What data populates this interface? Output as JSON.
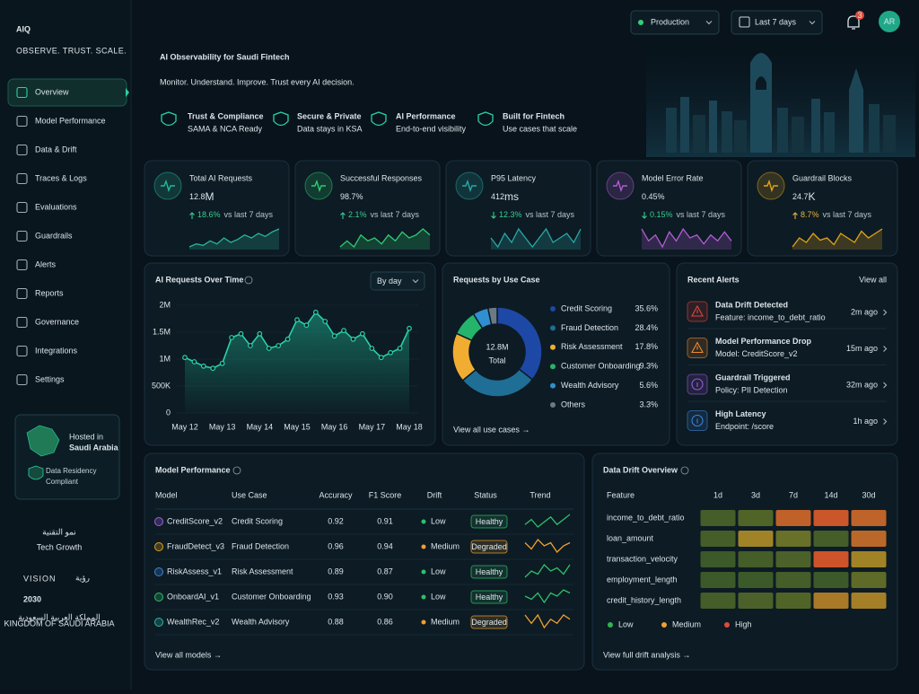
{
  "brand": {
    "logo": "AIQ",
    "tagline": "OBSERVE. TRUST. SCALE."
  },
  "nav": {
    "items": [
      "Overview",
      "Model Performance",
      "Data & Drift",
      "Traces & Logs",
      "Evaluations",
      "Guardrails",
      "Alerts",
      "Reports",
      "Governance",
      "Integrations",
      "Settings"
    ],
    "active": 0
  },
  "hosted": {
    "label": "Hosted in",
    "country": "Saudi Arabia",
    "residency": "Data Residency Compliant"
  },
  "growth": {
    "arabic": "نمو التقنية",
    "english": "Tech Growth"
  },
  "vision": {
    "title": "VISION",
    "arabic": "رؤية",
    "year": "2030",
    "arabic_sub": "المملكة العربية السعودية",
    "sub": "KINGDOM OF SAUDI ARABIA"
  },
  "topbar": {
    "environment": "Production",
    "range": "Last 7 days",
    "notifications": 3,
    "avatar": "AR"
  },
  "hero": {
    "title": "AI Observability for Saudi Fintech",
    "subtitle": "Monitor. Understand. Improve. Trust every AI decision.",
    "features": [
      {
        "title": "Trust & Compliance",
        "sub": "SAMA & NCA Ready"
      },
      {
        "title": "Secure & Private",
        "sub": "Data stays in KSA"
      },
      {
        "title": "AI Performance",
        "sub": "End-to-end visibility"
      },
      {
        "title": "Built for Fintech",
        "sub": "Use cases that scale"
      }
    ]
  },
  "kpis": [
    {
      "label": "Total AI Requests",
      "value": "12.8",
      "unit": "M",
      "change": "18.6%",
      "direction": "up",
      "comparison": "vs last 7 days",
      "color": "#27b79a",
      "change_color": "#35d08f",
      "trend": [
        5,
        6,
        5.5,
        7,
        6,
        8,
        6.5,
        7.5,
        9,
        8,
        9.5,
        8.5,
        10,
        11
      ]
    },
    {
      "label": "Successful Responses",
      "value": "98.7%",
      "change": "2.1%",
      "direction": "up",
      "comparison": "vs last 7 days",
      "color": "#2ecc71",
      "change_color": "#35d08f",
      "trend": [
        6,
        7,
        6,
        8,
        7,
        7.5,
        6.5,
        8,
        7,
        8.5,
        7.5,
        8,
        9,
        8
      ]
    },
    {
      "label": "P95 Latency",
      "value": "412",
      "unit": "ms",
      "change": "12.3%",
      "direction": "down",
      "comparison": "vs last 7 days",
      "color": "#29a8a4",
      "change_color": "#35d08f",
      "trend": [
        7,
        6,
        7.5,
        6.5,
        8,
        7,
        6,
        7,
        8,
        6.5,
        7,
        7.5,
        6.5,
        8
      ]
    },
    {
      "label": "Model Error Rate",
      "value": "0.45%",
      "change": "0.15%",
      "direction": "down",
      "comparison": "vs last 7 days",
      "color": "#b25bd4",
      "change_color": "#35d08f",
      "trend": [
        8,
        6,
        7,
        5,
        7.5,
        6,
        8,
        6.5,
        7,
        5.5,
        7,
        6,
        7.5,
        6
      ]
    },
    {
      "label": "Guardrail Blocks",
      "value": "24.7",
      "unit": "K",
      "change": "8.7%",
      "direction": "up",
      "comparison": "vs last 7 days",
      "color": "#e3a21a",
      "change_color": "#e7b53a",
      "trend": [
        5,
        7,
        6,
        8,
        6.5,
        7,
        5.5,
        8,
        7,
        6,
        8.5,
        7,
        8,
        9
      ]
    }
  ],
  "chart_data": [
    {
      "type": "line",
      "title": "AI Requests Over Time",
      "control": "By day",
      "categories": [
        "May 12",
        null,
        null,
        null,
        "May 13",
        null,
        null,
        null,
        "May 14",
        null,
        null,
        null,
        "May 15",
        null,
        null,
        null,
        "May 16",
        null,
        null,
        null,
        "May 17",
        null,
        null,
        null,
        "May 18"
      ],
      "values": [
        1030000,
        950000,
        870000,
        830000,
        920000,
        1400000,
        1470000,
        1250000,
        1470000,
        1200000,
        1250000,
        1370000,
        1730000,
        1630000,
        1870000,
        1700000,
        1430000,
        1530000,
        1370000,
        1470000,
        1200000,
        1030000,
        1120000,
        1200000,
        1570000
      ],
      "color": "#2ad1a8",
      "ylim": [
        0,
        2000000
      ],
      "yticks": [
        0,
        {
          "value": 500000,
          "label": "500K"
        },
        {
          "value": 1000000,
          "label": "1M"
        },
        {
          "value": 1500000,
          "label": "1.5M"
        },
        {
          "value": 2000000,
          "label": "2M"
        }
      ],
      "grid": true
    },
    {
      "type": "pie",
      "title": "Requests by Use Case",
      "center_value": "12.8M",
      "center_label": "Total",
      "categories": [
        "Credit Scoring",
        "Fraud Detection",
        "Risk Assessment",
        "Customer Onboarding",
        "Wealth Advisory",
        "Others"
      ],
      "values": [
        35.6,
        28.4,
        17.8,
        9.3,
        5.6,
        3.3
      ],
      "value_labels": [
        "35.6%",
        "28.4%",
        "17.8%",
        "9.3%",
        "5.6%",
        "3.3%"
      ],
      "colors": [
        "#1d48a6",
        "#1f6e96",
        "#f0ad32",
        "#24b46c",
        "#2f8fd0",
        "#6b7a85"
      ],
      "link": "View all use cases →"
    }
  ],
  "alerts": {
    "title": "Recent Alerts",
    "link": "View all",
    "items": [
      {
        "title": "Data Drift Detected",
        "detail": "Feature: income_to_debt_ratio",
        "time": "2m ago",
        "color": "#e0463a",
        "icon": "warning"
      },
      {
        "title": "Model Performance Drop",
        "detail": "Model: CreditScore_v2",
        "time": "15m ago",
        "color": "#ef8a2c",
        "icon": "warning"
      },
      {
        "title": "Guardrail Triggered",
        "detail": "Policy: PII Detection",
        "time": "32m ago",
        "color": "#9a5ad6",
        "icon": "info"
      },
      {
        "title": "High Latency",
        "detail": "Endpoint: /score",
        "time": "1h ago",
        "color": "#3a84d6",
        "icon": "info"
      }
    ]
  },
  "model_performance": {
    "title": "Model Performance",
    "columns": [
      "Model",
      "Use Case",
      "Accuracy",
      "F1 Score",
      "Drift",
      "Status",
      "Trend"
    ],
    "rows": [
      {
        "model": "CreditScore_v2",
        "use_case": "Credit Scoring",
        "accuracy": "0.92",
        "f1": "0.91",
        "drift": "Low",
        "status": "Healthy",
        "icon_color": "#a35ee0",
        "drift_color": "#2fbf6a",
        "status_color": "#2fbf6a",
        "trend": [
          4,
          6,
          3,
          5,
          7,
          4,
          6,
          8
        ]
      },
      {
        "model": "FraudDetect_v3",
        "use_case": "Fraud Detection",
        "accuracy": "0.96",
        "f1": "0.94",
        "drift": "Medium",
        "status": "Degraded",
        "icon_color": "#e3a21a",
        "drift_color": "#f0a030",
        "status_color": "#f0a030",
        "trend": [
          6,
          4,
          7,
          5,
          6,
          3,
          5,
          6
        ]
      },
      {
        "model": "RiskAssess_v1",
        "use_case": "Risk Assessment",
        "accuracy": "0.89",
        "f1": "0.87",
        "drift": "Low",
        "status": "Healthy",
        "icon_color": "#3a84d6",
        "drift_color": "#2fbf6a",
        "status_color": "#2fbf6a",
        "trend": [
          3,
          5,
          4,
          7,
          5,
          6,
          4,
          7
        ]
      },
      {
        "model": "OnboardAI_v1",
        "use_case": "Customer Onboarding",
        "accuracy": "0.93",
        "f1": "0.90",
        "drift": "Low",
        "status": "Healthy",
        "icon_color": "#2fbf6a",
        "drift_color": "#2fbf6a",
        "status_color": "#2fbf6a",
        "trend": [
          5,
          4,
          6,
          3,
          6,
          5,
          7,
          6
        ]
      },
      {
        "model": "WealthRec_v2",
        "use_case": "Wealth Advisory",
        "accuracy": "0.88",
        "f1": "0.86",
        "drift": "Medium",
        "status": "Degraded",
        "icon_color": "#2fb8a8",
        "drift_color": "#f0a030",
        "status_color": "#f0a030",
        "trend": [
          6,
          4,
          6,
          3,
          5,
          4,
          6,
          5
        ]
      }
    ],
    "link": "View all models →"
  },
  "drift": {
    "title": "Data Drift Overview",
    "header": "Feature",
    "periods": [
      "1d",
      "3d",
      "7d",
      "14d",
      "30d"
    ],
    "features": [
      "income_to_debt_ratio",
      "loan_amount",
      "transaction_velocity",
      "employment_length",
      "credit_history_length"
    ],
    "scores": [
      [
        0.15,
        0.2,
        0.8,
        0.88,
        0.78
      ],
      [
        0.15,
        0.55,
        0.3,
        0.15,
        0.75
      ],
      [
        0.12,
        0.15,
        0.18,
        0.9,
        0.55
      ],
      [
        0.12,
        0.12,
        0.15,
        0.12,
        0.25
      ],
      [
        0.15,
        0.18,
        0.2,
        0.62,
        0.58
      ]
    ],
    "legend": [
      {
        "label": "Low",
        "color": "#2fb552"
      },
      {
        "label": "Medium",
        "color": "#f0a030"
      },
      {
        "label": "High",
        "color": "#e04a3a"
      }
    ],
    "link": "View full drift analysis →"
  }
}
